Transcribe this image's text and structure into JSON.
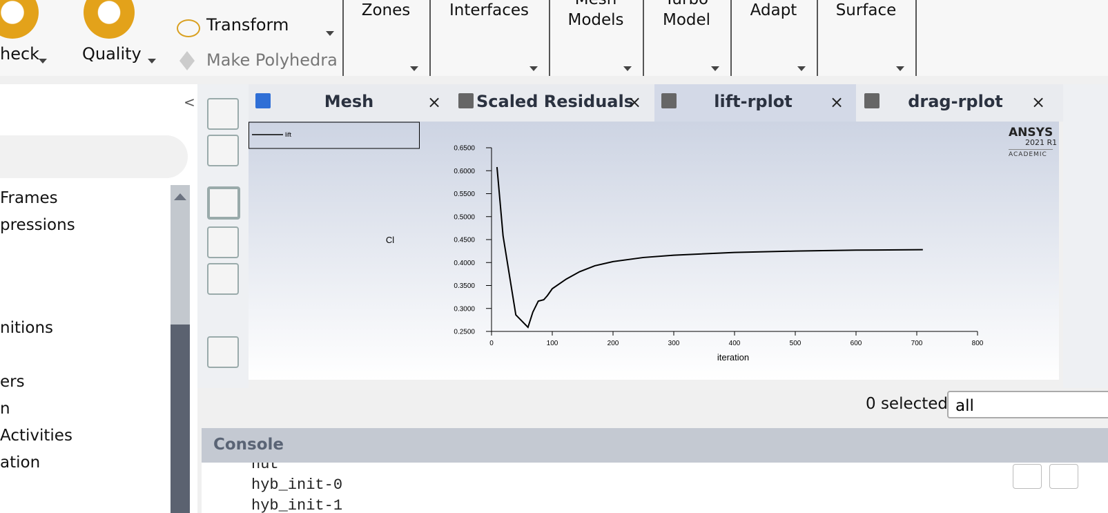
{
  "ribbon": {
    "check": "heck",
    "quality": "Quality",
    "transform": "Transform",
    "make_polyhedra": "Make Polyhedra",
    "groups": [
      [
        "Zones"
      ],
      [
        "Interfaces"
      ],
      [
        "Mesh",
        "Models"
      ],
      [
        "Turbo",
        "Model"
      ],
      [
        "Adapt"
      ],
      [
        "Surface"
      ]
    ]
  },
  "tree": [
    "Frames",
    "pressions",
    "nitions",
    "ers",
    "n",
    "Activities",
    "ation"
  ],
  "tabs": [
    "Mesh",
    "Scaled Residuals",
    "lift-rplot",
    "drag-rplot"
  ],
  "brand": {
    "name": "ANSYS",
    "version": "2021 R1",
    "edition": "ACADEMIC"
  },
  "chart_data": {
    "type": "line",
    "x_label": "iteration",
    "y_label": "Cl",
    "xlim": [
      0,
      800
    ],
    "ylim": [
      0.25,
      0.65
    ],
    "xticks": [
      0,
      100,
      200,
      300,
      400,
      500,
      600,
      700,
      800
    ],
    "yticks": [
      {
        "value": 0.25,
        "label": "0.2500"
      },
      {
        "value": 0.3,
        "label": "0.3000"
      },
      {
        "value": 0.35,
        "label": "0.3500"
      },
      {
        "value": 0.4,
        "label": "0.4000"
      },
      {
        "value": 0.45,
        "label": "0.4500"
      },
      {
        "value": 0.5,
        "label": "0.5000"
      },
      {
        "value": 0.55,
        "label": "0.5500"
      },
      {
        "value": 0.6,
        "label": "0.6000"
      },
      {
        "value": 0.65,
        "label": "0.6500"
      }
    ],
    "x": [
      9,
      19,
      40,
      60,
      68,
      77,
      86,
      92,
      100,
      123,
      145,
      170,
      200,
      250,
      300,
      400,
      500,
      600,
      710
    ],
    "series": [
      {
        "name": "lift",
        "color": "#000000",
        "values": [
          0.608,
          0.458,
          0.286,
          0.259,
          0.292,
          0.316,
          0.319,
          0.328,
          0.343,
          0.364,
          0.38,
          0.393,
          0.402,
          0.411,
          0.416,
          0.422,
          0.425,
          0.427,
          0.428
        ]
      }
    ]
  },
  "selection": {
    "count": "0 selected",
    "filter": "all"
  },
  "console": {
    "title": "Console",
    "lines": [
      "hut",
      "hyb_init-0",
      "hyb_init-1"
    ]
  }
}
